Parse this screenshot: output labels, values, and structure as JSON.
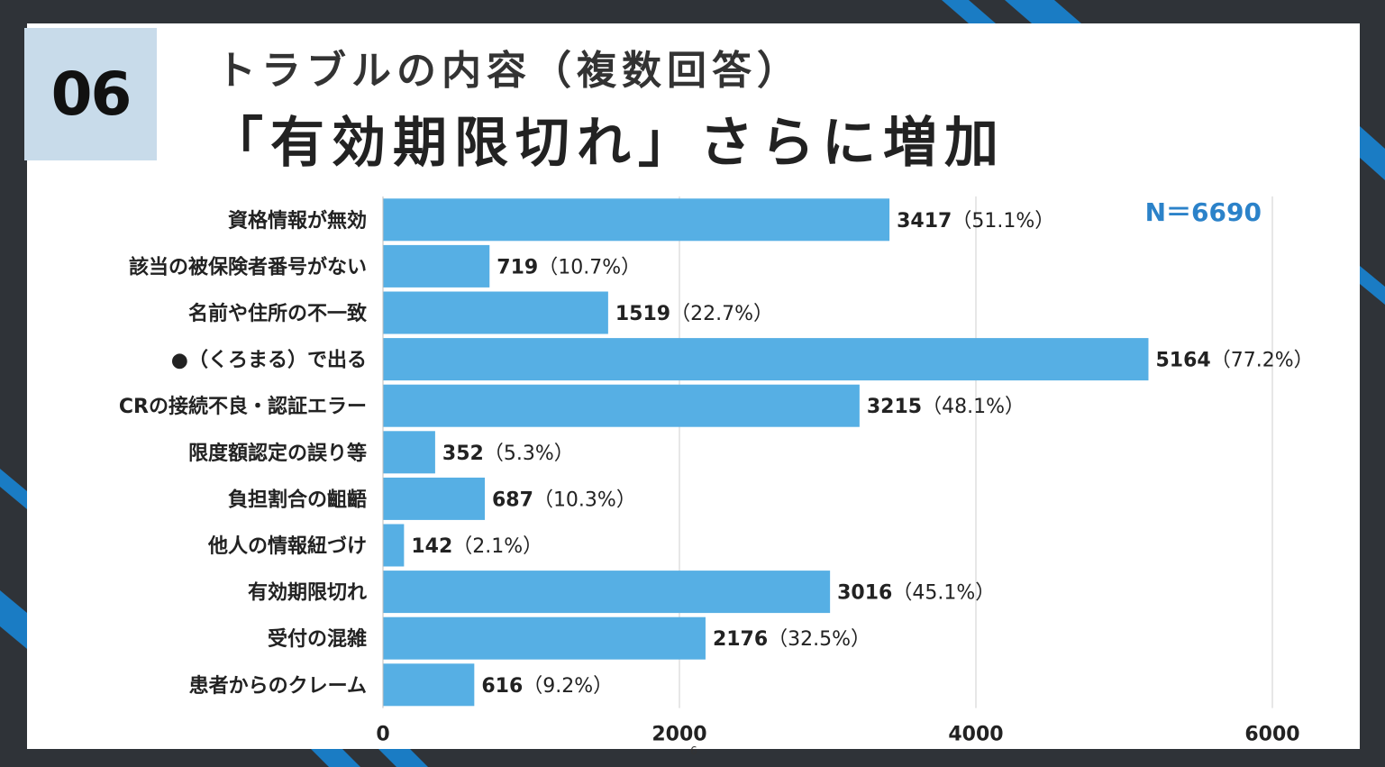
{
  "slide": {
    "number": "06",
    "title": "トラブルの内容（複数回答）",
    "subtitle": "「有効期限切れ」さらに増加",
    "page_number": "6"
  },
  "colors": {
    "bar": "#56afe4",
    "accent_blue": "#1a7cc4",
    "dark": "#2f3338",
    "badge_bg": "#c8dbea",
    "n_label": "#2b82c9"
  },
  "chart_data": {
    "type": "bar",
    "orientation": "horizontal",
    "annotation": "N＝6690",
    "categories": [
      "資格情報が無効",
      "該当の被保険者番号がない",
      "名前や住所の不一致",
      "●（くろまる）で出る",
      "CRの接続不良・認証エラー",
      "限度額認定の誤り等",
      "負担割合の齟齬",
      "他人の情報紐づけ",
      "有効期限切れ",
      "受付の混雑",
      "患者からのクレーム"
    ],
    "values": [
      3417,
      719,
      1519,
      5164,
      3215,
      352,
      687,
      142,
      3016,
      2176,
      616
    ],
    "percentages": [
      "（51.1%）",
      "（10.7%）",
      "（22.7%）",
      "（77.2%）",
      "（48.1%）",
      "（5.3%）",
      "（10.3%）",
      "（2.1%）",
      "（45.1%）",
      "（32.5%）",
      "（9.2%）"
    ],
    "xticks": [
      "0",
      "2000",
      "4000",
      "6000"
    ],
    "xlim": [
      0,
      6000
    ],
    "grid": true,
    "legend": "none"
  }
}
